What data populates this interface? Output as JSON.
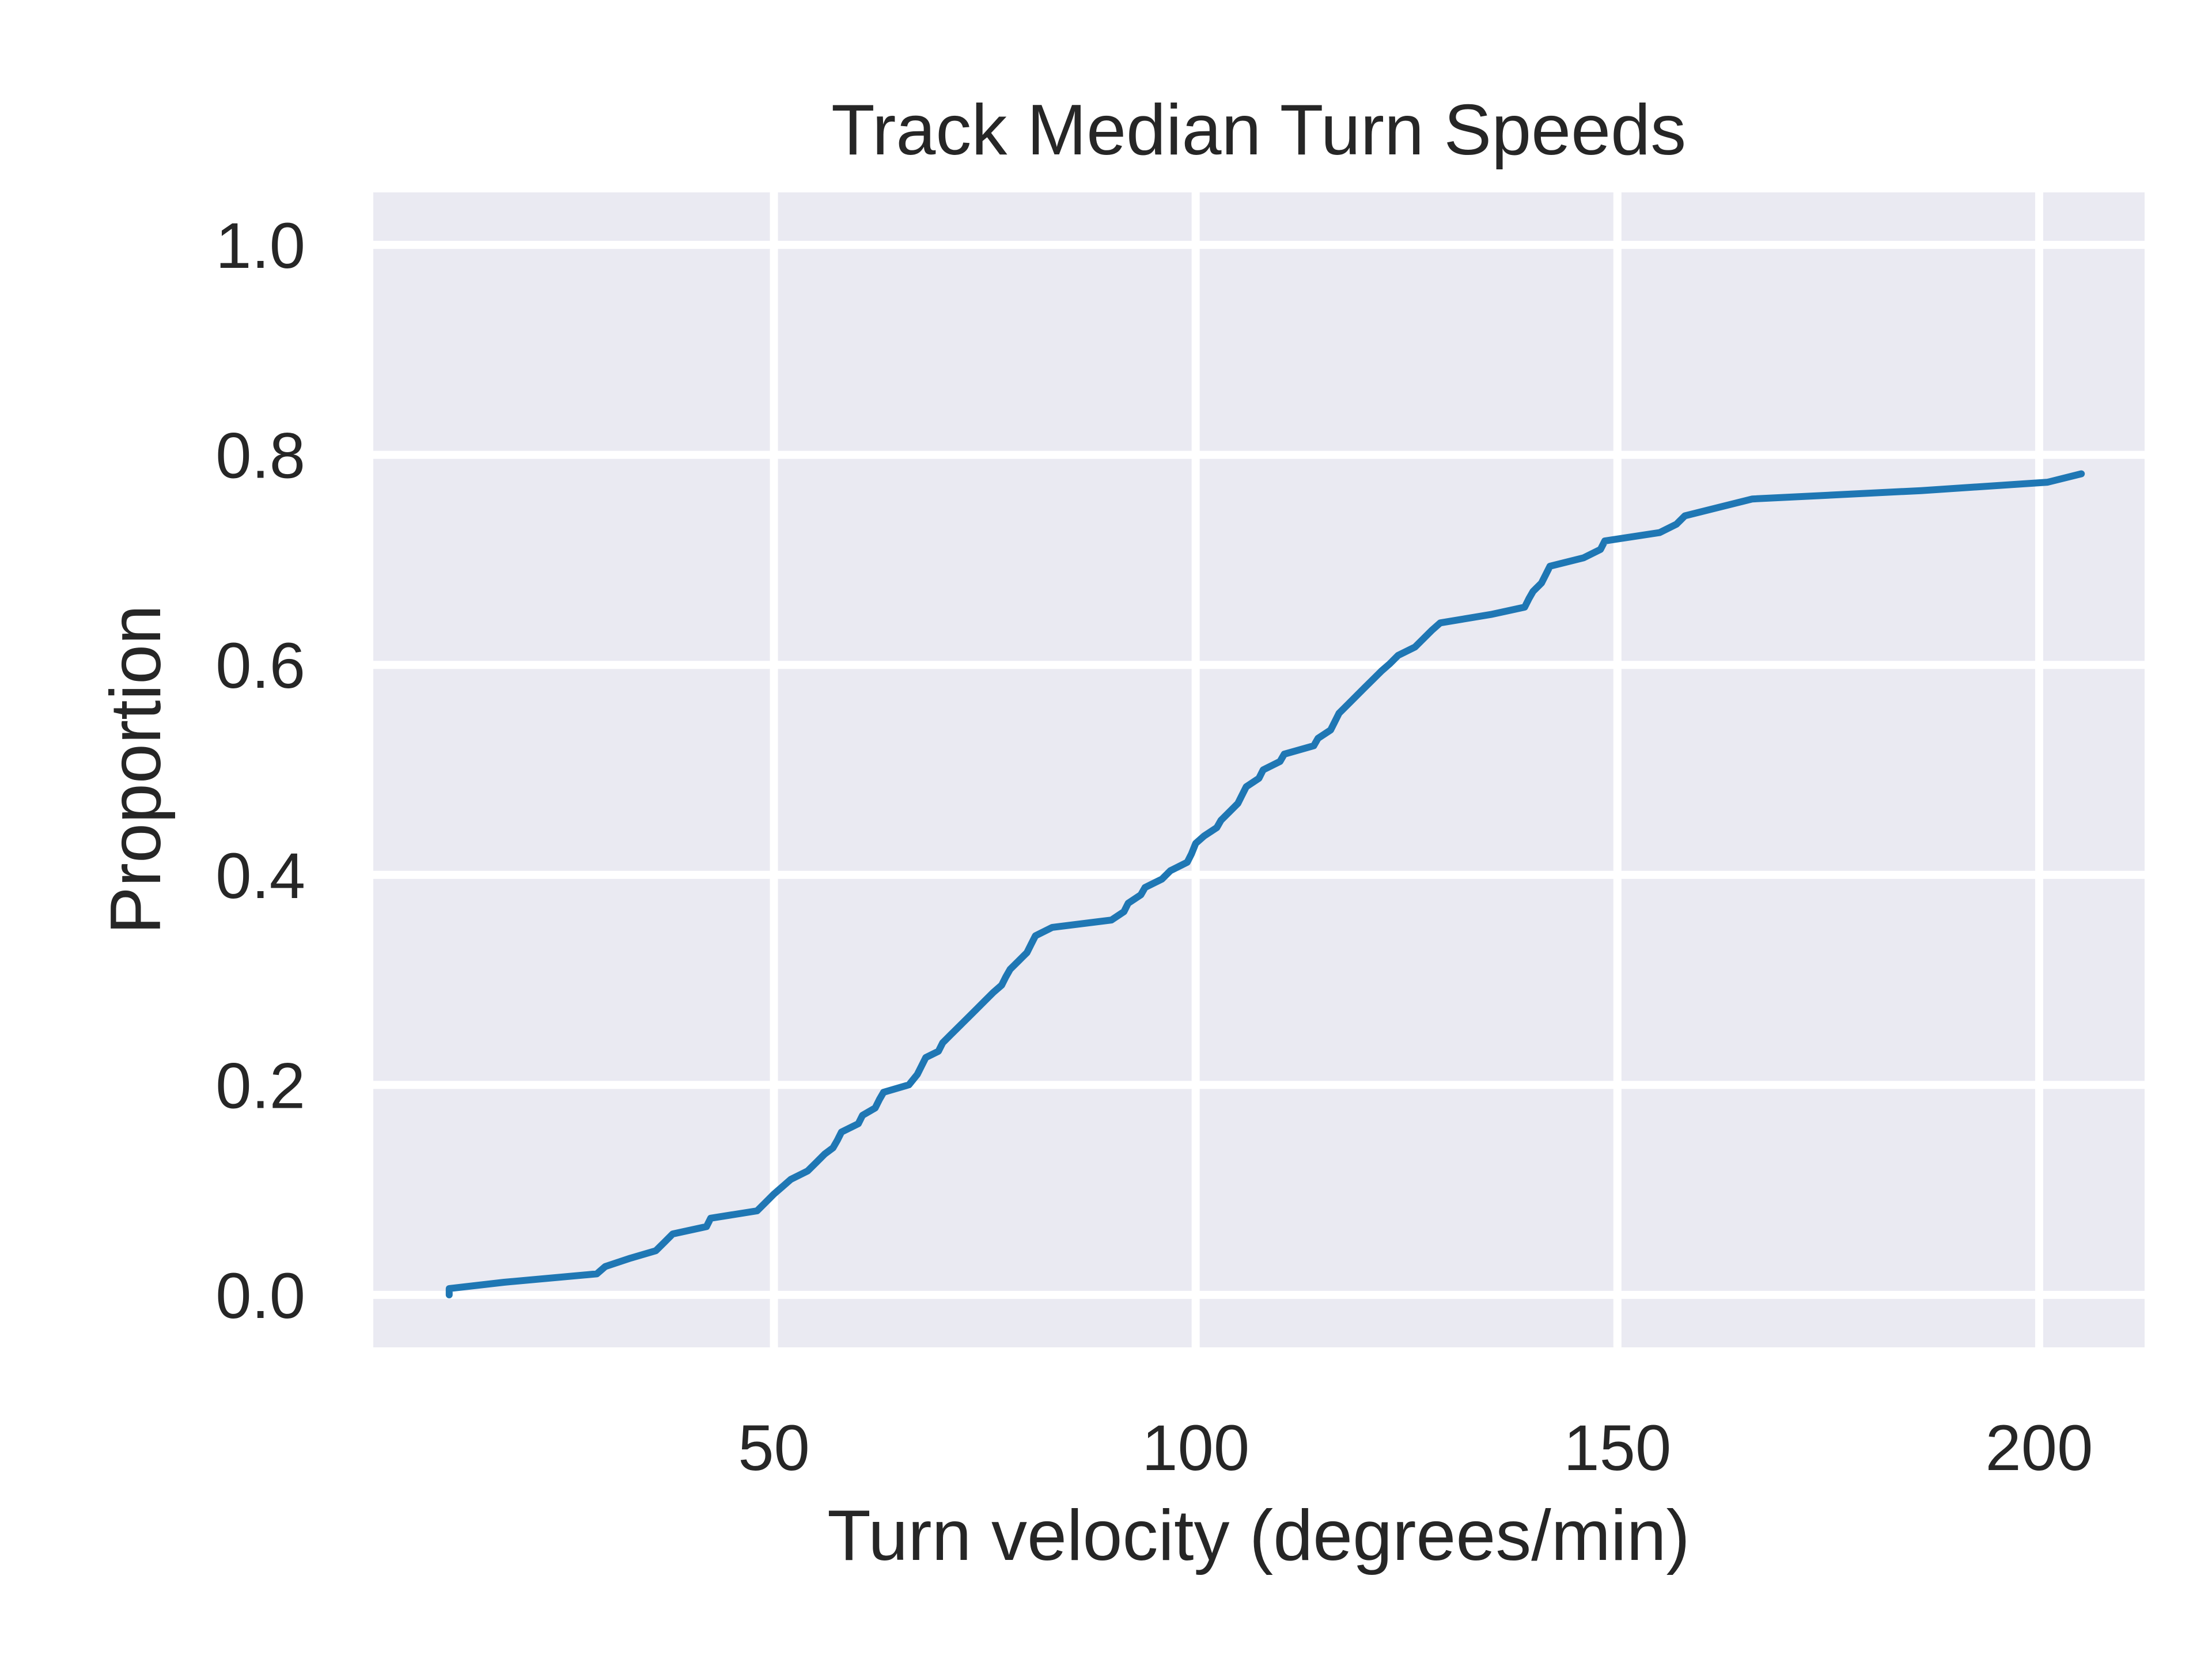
{
  "chart_data": {
    "type": "line",
    "title": "Track Median Turn Speeds",
    "xlabel": "Turn velocity (degrees/min)",
    "ylabel": "Proportion",
    "xlim": [
      2.5,
      212.5
    ],
    "ylim": [
      -0.05,
      1.05
    ],
    "xticks": [
      50,
      100,
      150,
      200
    ],
    "xtick_labels": [
      "50",
      "100",
      "150",
      "200"
    ],
    "yticks": [
      0.0,
      0.2,
      0.4,
      0.6,
      0.8,
      1.0
    ],
    "ytick_labels": [
      "0.0",
      "0.2",
      "0.4",
      "0.6",
      "0.8",
      "1.0"
    ],
    "grid": true,
    "background": "#eaeaf2",
    "grid_color": "#ffffff",
    "series": [
      {
        "color": "#1f77b4",
        "x": [
          11.5,
          11.5,
          18,
          29,
          30,
          33,
          36,
          37,
          38,
          42,
          42.5,
          48,
          49,
          50,
          51,
          52,
          54,
          55,
          56,
          57,
          57.5,
          58,
          60,
          60.5,
          62,
          62.5,
          63,
          66,
          67,
          67.5,
          68,
          69.5,
          70,
          71,
          72,
          73,
          74,
          75,
          76,
          77,
          77.5,
          78,
          79,
          80,
          80.5,
          81,
          83,
          90,
          91.5,
          92,
          93.5,
          94,
          96,
          97,
          99,
          99.5,
          100,
          101,
          102.5,
          103,
          104,
          105,
          105.5,
          106,
          107.5,
          108,
          110,
          110.5,
          114,
          114.5,
          116,
          116.5,
          117,
          118,
          119,
          120,
          121,
          122,
          123,
          124,
          126,
          127,
          128,
          129,
          135,
          139,
          139.5,
          140,
          141,
          141.5,
          142,
          146,
          148,
          148.5,
          155,
          157,
          158,
          162,
          166,
          186,
          201,
          205
        ],
        "y": [
          0.0,
          0.006,
          0.012,
          0.02,
          0.027,
          0.035,
          0.042,
          0.05,
          0.058,
          0.065,
          0.073,
          0.08,
          0.088,
          0.096,
          0.103,
          0.11,
          0.118,
          0.126,
          0.134,
          0.14,
          0.147,
          0.155,
          0.163,
          0.171,
          0.178,
          0.186,
          0.193,
          0.2,
          0.21,
          0.218,
          0.226,
          0.232,
          0.24,
          0.248,
          0.256,
          0.264,
          0.272,
          0.28,
          0.288,
          0.295,
          0.303,
          0.31,
          0.318,
          0.326,
          0.334,
          0.342,
          0.35,
          0.357,
          0.365,
          0.373,
          0.381,
          0.388,
          0.396,
          0.404,
          0.412,
          0.42,
          0.43,
          0.437,
          0.445,
          0.452,
          0.46,
          0.468,
          0.476,
          0.484,
          0.492,
          0.5,
          0.508,
          0.515,
          0.523,
          0.53,
          0.538,
          0.546,
          0.554,
          0.562,
          0.57,
          0.578,
          0.586,
          0.594,
          0.601,
          0.609,
          0.617,
          0.625,
          0.633,
          0.64,
          0.648,
          0.655,
          0.663,
          0.67,
          0.678,
          0.686,
          0.694,
          0.702,
          0.71,
          0.718,
          0.726,
          0.734,
          0.742,
          0.75,
          0.758,
          0.766,
          0.774,
          0.782
        ]
      }
    ]
  }
}
